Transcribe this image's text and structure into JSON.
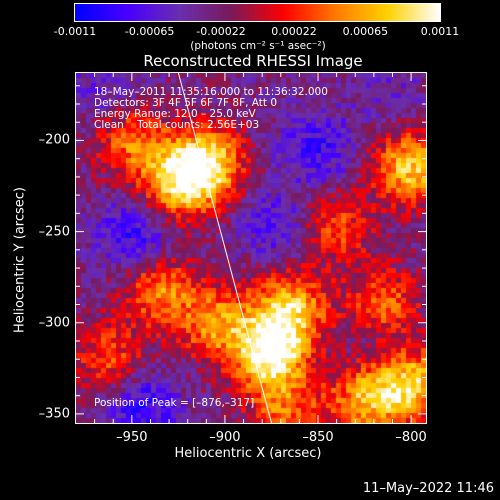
{
  "colorbar": {
    "tick_labels": [
      "-0.0011",
      "-0.00065",
      "-0.00022",
      "0.00022",
      "0.00065",
      "0.0011"
    ],
    "units": "(photons cm⁻² s⁻¹ asec⁻²)",
    "colors": [
      "#0000ff",
      "#4a00ff",
      "#6a2fb0",
      "#7a1a5a",
      "#ff0000",
      "#ff7a00",
      "#ffd200",
      "#ffffff"
    ]
  },
  "title": "Reconstructed RHESSI Image",
  "annotations": {
    "time_range": "18–May–2011 11:35:16.000 to 11:36:32.000",
    "detectors": "Detectors: 3F 4F 5F 6F 7F 8F, Att 0",
    "energy": "Energy Range: 12.0 – 25.0 keV",
    "clean": "Clean    Total counts: 2.56E+03",
    "peak": "Position of Peak = [–876,–317]"
  },
  "footer_timestamp": "11–May–2022 11:46",
  "chart_data": {
    "type": "heatmap",
    "title": "Reconstructed RHESSI Image",
    "xlabel": "Heliocentric X (arcsec)",
    "ylabel": "Heliocentric Y (arcsec)",
    "xlim": [
      -980,
      -792
    ],
    "ylim": [
      -355,
      -163
    ],
    "xticks": [
      -950,
      -900,
      -850,
      -800
    ],
    "yticks": [
      -200,
      -250,
      -300,
      -350
    ],
    "xtick_labels": [
      "–950",
      "–900",
      "–850",
      "–800"
    ],
    "ytick_labels": [
      "–200",
      "–250",
      "–300",
      "–350"
    ],
    "value_range": [
      -0.0011,
      0.0011
    ],
    "peak_position": [
      -876,
      -317
    ],
    "limb_line": [
      [
        -925,
        -163
      ],
      [
        -875,
        -355
      ]
    ],
    "sources": [
      {
        "x": -910,
        "y": -212,
        "value": 0.00095
      },
      {
        "x": -926,
        "y": -225,
        "value": 0.0007
      },
      {
        "x": -876,
        "y": -317,
        "value": 0.0011
      },
      {
        "x": -865,
        "y": -292,
        "value": 0.00075
      },
      {
        "x": -905,
        "y": -300,
        "value": 0.00055
      },
      {
        "x": -935,
        "y": -282,
        "value": 0.0005
      },
      {
        "x": -800,
        "y": -215,
        "value": 0.0008
      },
      {
        "x": -800,
        "y": -334,
        "value": 0.0008
      },
      {
        "x": -825,
        "y": -342,
        "value": 0.0006
      },
      {
        "x": -815,
        "y": -290,
        "value": 0.00045
      },
      {
        "x": -950,
        "y": -200,
        "value": 0.00045
      },
      {
        "x": -962,
        "y": -320,
        "value": 0.00035
      },
      {
        "x": -840,
        "y": -248,
        "value": 0.0003
      },
      {
        "x": -868,
        "y": -350,
        "value": 0.0004
      }
    ],
    "sinks": [
      {
        "x": -948,
        "y": -252,
        "value": -0.0009
      },
      {
        "x": -850,
        "y": -205,
        "value": -0.0008
      },
      {
        "x": -872,
        "y": -248,
        "value": -0.0007
      },
      {
        "x": -945,
        "y": -345,
        "value": -0.0009
      },
      {
        "x": -962,
        "y": -172,
        "value": -0.0006
      },
      {
        "x": -820,
        "y": -310,
        "value": -0.0005
      },
      {
        "x": -812,
        "y": -172,
        "value": -0.0005
      }
    ],
    "background_value": -0.0003
  }
}
